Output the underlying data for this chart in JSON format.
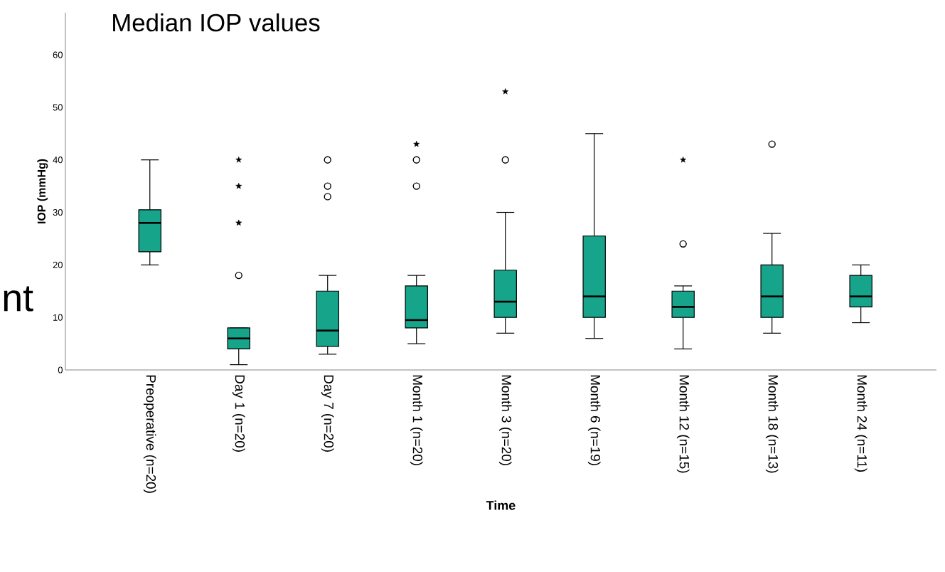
{
  "chart_data": {
    "type": "box",
    "title": "Median IOP values",
    "xlabel": "Time",
    "ylabel": "IOP (mmHg)",
    "annotations": [
      "nt"
    ],
    "categories": [
      "Preoperative (n=20)",
      "Day 1 (n=20)",
      "Day 7 (n=20)",
      "Month 1 (n=20)",
      "Month 3 (n=20)",
      "Month 6 (n=19)",
      "Month 12 (n=15)",
      "Month 18 (n=13)",
      "Month 24 (n=11)"
    ],
    "ylim": [
      0,
      68
    ],
    "yticks": [
      0,
      10,
      20,
      30,
      40,
      50,
      60
    ],
    "grid": false,
    "series": [
      {
        "type": "box",
        "color": "#16a48a",
        "marker": "circle",
        "boxes": [
          {
            "low": 20,
            "q1": 22.5,
            "median": 28,
            "q3": 30.5,
            "high": 40
          },
          {
            "low": 1,
            "q1": 4,
            "median": 6,
            "q3": 8,
            "high": 8,
            "outliers": [
              18
            ]
          },
          {
            "low": 3,
            "q1": 4.5,
            "median": 7.5,
            "q3": 15,
            "high": 18,
            "outliers": [
              33,
              35,
              40
            ]
          },
          {
            "low": 5,
            "q1": 8,
            "median": 9.5,
            "q3": 16,
            "high": 18,
            "outliers": [
              35,
              40
            ]
          },
          {
            "low": 7,
            "q1": 10,
            "median": 13,
            "q3": 19,
            "high": 30,
            "outliers": [
              40
            ]
          },
          {
            "low": 6,
            "q1": 10,
            "median": 14,
            "q3": 25.5,
            "high": 45
          },
          {
            "low": 4,
            "q1": 10,
            "median": 12,
            "q3": 15,
            "high": 16,
            "outliers": [
              24
            ]
          },
          {
            "low": 7,
            "q1": 10,
            "median": 14,
            "q3": 20,
            "high": 26,
            "outliers": [
              43
            ]
          },
          {
            "low": 9,
            "q1": 12,
            "median": 14,
            "q3": 18,
            "high": 20
          }
        ]
      },
      {
        "type": "scatter",
        "marker": "star",
        "color": "#000000",
        "x": [
          "Day 1 (n=20)",
          "Day 1 (n=20)",
          "Day 1 (n=20)",
          "Month 1 (n=20)",
          "Month 3 (n=20)",
          "Month 12 (n=15)"
        ],
        "values": [
          28,
          35,
          40,
          43,
          53,
          40
        ]
      }
    ]
  }
}
